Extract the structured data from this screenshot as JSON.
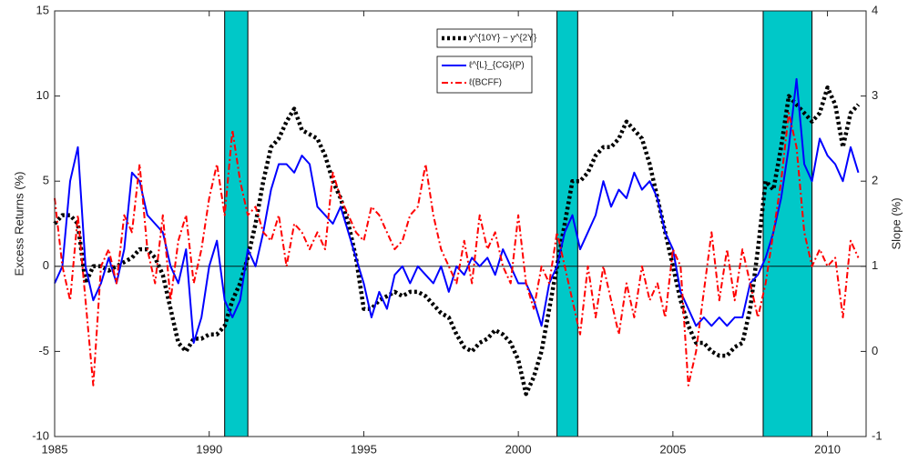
{
  "chart_data": {
    "type": "line",
    "ylabel": "Excess Returns (%)",
    "y2label": "Slope (%)",
    "xlim": [
      1985,
      2011.25
    ],
    "xticks": [
      1985,
      1990,
      1995,
      2000,
      2005,
      2010
    ],
    "ylim": [
      -10,
      15
    ],
    "yticks": [
      -10,
      -5,
      0,
      5,
      10,
      15
    ],
    "y2lim": [
      -1,
      4
    ],
    "y2ticks": [
      -1,
      0,
      1,
      2,
      3,
      4
    ],
    "bands": [
      [
        1990.5,
        1991.25
      ],
      [
        2001.25,
        2001.92
      ],
      [
        2007.92,
        2009.5
      ]
    ],
    "band_color": "#00c8c8",
    "x": [
      1985,
      1985.25,
      1985.5,
      1985.75,
      1986,
      1986.25,
      1986.5,
      1986.75,
      1987,
      1987.25,
      1987.5,
      1987.75,
      1988,
      1988.25,
      1988.5,
      1988.75,
      1989,
      1989.25,
      1989.5,
      1989.75,
      1990,
      1990.25,
      1990.5,
      1990.75,
      1991,
      1991.25,
      1991.5,
      1991.75,
      1992,
      1992.25,
      1992.5,
      1992.75,
      1993,
      1993.25,
      1993.5,
      1993.75,
      1994,
      1994.25,
      1994.5,
      1994.75,
      1995,
      1995.25,
      1995.5,
      1995.75,
      1996,
      1996.25,
      1996.5,
      1996.75,
      1997,
      1997.25,
      1997.5,
      1997.75,
      1998,
      1998.25,
      1998.5,
      1998.75,
      1999,
      1999.25,
      1999.5,
      1999.75,
      2000,
      2000.25,
      2000.5,
      2000.75,
      2001,
      2001.25,
      2001.5,
      2001.75,
      2002,
      2002.25,
      2002.5,
      2002.75,
      2003,
      2003.25,
      2003.5,
      2003.75,
      2004,
      2004.25,
      2004.5,
      2004.75,
      2005,
      2005.25,
      2005.5,
      2005.75,
      2006,
      2006.25,
      2006.5,
      2006.75,
      2007,
      2007.25,
      2007.5,
      2007.75,
      2008,
      2008.25,
      2008.5,
      2008.75,
      2009,
      2009.25,
      2009.5,
      2009.75,
      2010,
      2010.25,
      2010.5,
      2010.75,
      2011
    ],
    "series": [
      {
        "name": "y^{10Y} − y^{2Y}",
        "color": "#000000",
        "axis": "y2",
        "style": "dotted",
        "values": [
          1.5,
          1.6,
          1.6,
          1.5,
          0.8,
          1.0,
          1.0,
          0.95,
          1.0,
          1.05,
          1.1,
          1.2,
          1.2,
          1.1,
          0.9,
          0.5,
          0.1,
          0.0,
          0.15,
          0.15,
          0.2,
          0.2,
          0.3,
          0.6,
          0.8,
          1.1,
          1.5,
          2.0,
          2.4,
          2.5,
          2.7,
          2.85,
          2.6,
          2.55,
          2.5,
          2.3,
          2.0,
          1.8,
          1.5,
          1.1,
          0.5,
          0.5,
          0.6,
          0.65,
          0.7,
          0.65,
          0.7,
          0.7,
          0.65,
          0.55,
          0.45,
          0.4,
          0.2,
          0.05,
          0.0,
          0.1,
          0.15,
          0.25,
          0.2,
          0.1,
          -0.1,
          -0.5,
          -0.3,
          0.0,
          0.5,
          1.0,
          1.5,
          2.0,
          2.0,
          2.1,
          2.3,
          2.4,
          2.4,
          2.5,
          2.7,
          2.6,
          2.5,
          2.2,
          1.8,
          1.4,
          1.0,
          0.6,
          0.3,
          0.1,
          0.1,
          0.0,
          -0.05,
          -0.05,
          0.05,
          0.1,
          0.5,
          1.2,
          2.0,
          1.9,
          2.4,
          3.0,
          2.9,
          2.8,
          2.7,
          2.8,
          3.1,
          2.9,
          2.4,
          2.8,
          2.9
        ]
      },
      {
        "name": "ℓ^{L}_{CG}(P)",
        "color": "#0000ff",
        "style": "solid",
        "values": [
          -1,
          0,
          5,
          7,
          0,
          -2,
          -1,
          0.5,
          -1,
          1,
          5.5,
          5,
          3,
          2.5,
          2,
          0,
          -1,
          1,
          -4.5,
          -3,
          0,
          1.5,
          -2,
          -3,
          -2,
          1,
          0,
          2,
          4.5,
          6,
          6,
          5.5,
          6.5,
          6,
          3.5,
          3,
          2.5,
          3.5,
          2,
          0.5,
          -1,
          -3,
          -1.5,
          -2.5,
          -0.5,
          0,
          -1,
          0,
          -0.5,
          -1,
          0,
          -1.5,
          0,
          -0.5,
          0.5,
          0,
          0.5,
          -0.5,
          1,
          0,
          -1,
          -1,
          -2,
          -3.5,
          -1,
          0,
          2,
          3,
          1,
          2,
          3,
          5,
          3.5,
          4.5,
          4,
          5.5,
          4.5,
          5,
          4,
          2,
          1,
          -1.5,
          -2.5,
          -3.5,
          -3,
          -3.5,
          -3,
          -3.5,
          -3,
          -3,
          -1,
          -0.5,
          0.5,
          2,
          4,
          7,
          11,
          6,
          5,
          7.5,
          6.5,
          6,
          5,
          7,
          5.5
        ]
      },
      {
        "name": "ℓ(BCFF)",
        "color": "#ff0000",
        "style": "dashdot",
        "values": [
          4,
          0,
          -2,
          3,
          -2,
          -7,
          0,
          1,
          -1,
          3,
          2,
          6,
          1,
          -1,
          3,
          -2,
          1.5,
          3,
          -1,
          1,
          4,
          6,
          3,
          8,
          5,
          3,
          3.5,
          2,
          1.5,
          3,
          0,
          2.5,
          2,
          1,
          2,
          1,
          5.5,
          4,
          3,
          2,
          1.5,
          3.5,
          3,
          2,
          1,
          1.5,
          3,
          3.5,
          6,
          3,
          1,
          0,
          -1,
          1.5,
          -1,
          3,
          1,
          2,
          0,
          -1,
          3,
          -1,
          -2.5,
          0,
          -1,
          2,
          0,
          -2,
          -4,
          0,
          -3,
          0,
          -2,
          -4,
          -1,
          -3,
          0,
          -2,
          -1,
          -3,
          1,
          0,
          -7,
          -5,
          -1.5,
          2,
          -2,
          1,
          -2,
          1,
          -1,
          -3,
          -1,
          2,
          5,
          9,
          7,
          2,
          0,
          1,
          0,
          0.5,
          -3,
          1.5,
          0.5
        ]
      }
    ]
  }
}
